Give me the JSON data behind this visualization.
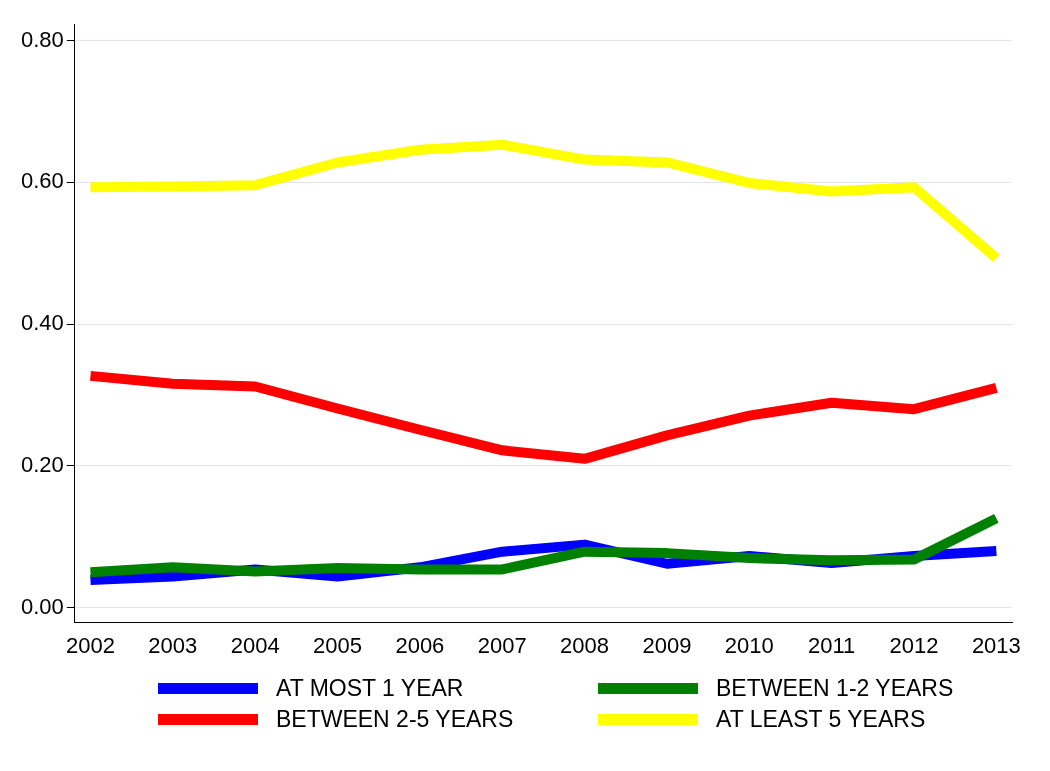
{
  "chart_data": {
    "type": "line",
    "x": [
      2002,
      2003,
      2004,
      2005,
      2006,
      2007,
      2008,
      2009,
      2010,
      2011,
      2012,
      2013
    ],
    "xlim": [
      2001.81,
      2013.19
    ],
    "xticks": [
      2002,
      2003,
      2004,
      2005,
      2006,
      2007,
      2008,
      2009,
      2010,
      2011,
      2012,
      2013
    ],
    "ylim": [
      -0.021,
      0.823
    ],
    "yticks": [
      {
        "value": 0,
        "label": "0.00"
      },
      {
        "value": 0.2,
        "label": "0.20"
      },
      {
        "value": 0.4,
        "label": "0.40"
      },
      {
        "value": 0.6,
        "label": "0.60"
      },
      {
        "value": 0.8,
        "label": "0.80"
      }
    ],
    "grid": "y",
    "legend": "bottom",
    "marker": "none",
    "line_style": "solid",
    "series": [
      {
        "name": "AT MOST 1 YEAR",
        "color": "#0000ff",
        "values": [
          0.039,
          0.044,
          0.054,
          0.044,
          0.057,
          0.079,
          0.089,
          0.062,
          0.073,
          0.063,
          0.073,
          0.08
        ]
      },
      {
        "name": "BETWEEN 1-2 YEARS",
        "color": "#008000",
        "values": [
          0.05,
          0.057,
          0.051,
          0.056,
          0.054,
          0.054,
          0.079,
          0.077,
          0.07,
          0.067,
          0.068,
          0.126
        ]
      },
      {
        "name": "BETWEEN 2-5 YEARS",
        "color": "#ff0000",
        "values": [
          0.327,
          0.316,
          0.312,
          0.281,
          0.251,
          0.222,
          0.21,
          0.243,
          0.271,
          0.289,
          0.28,
          0.31
        ]
      },
      {
        "name": "AT LEAST 5 YEARS",
        "color": "#ffff00",
        "values": [
          0.593,
          0.594,
          0.596,
          0.628,
          0.646,
          0.653,
          0.632,
          0.628,
          0.599,
          0.587,
          0.593,
          0.493
        ]
      }
    ]
  }
}
